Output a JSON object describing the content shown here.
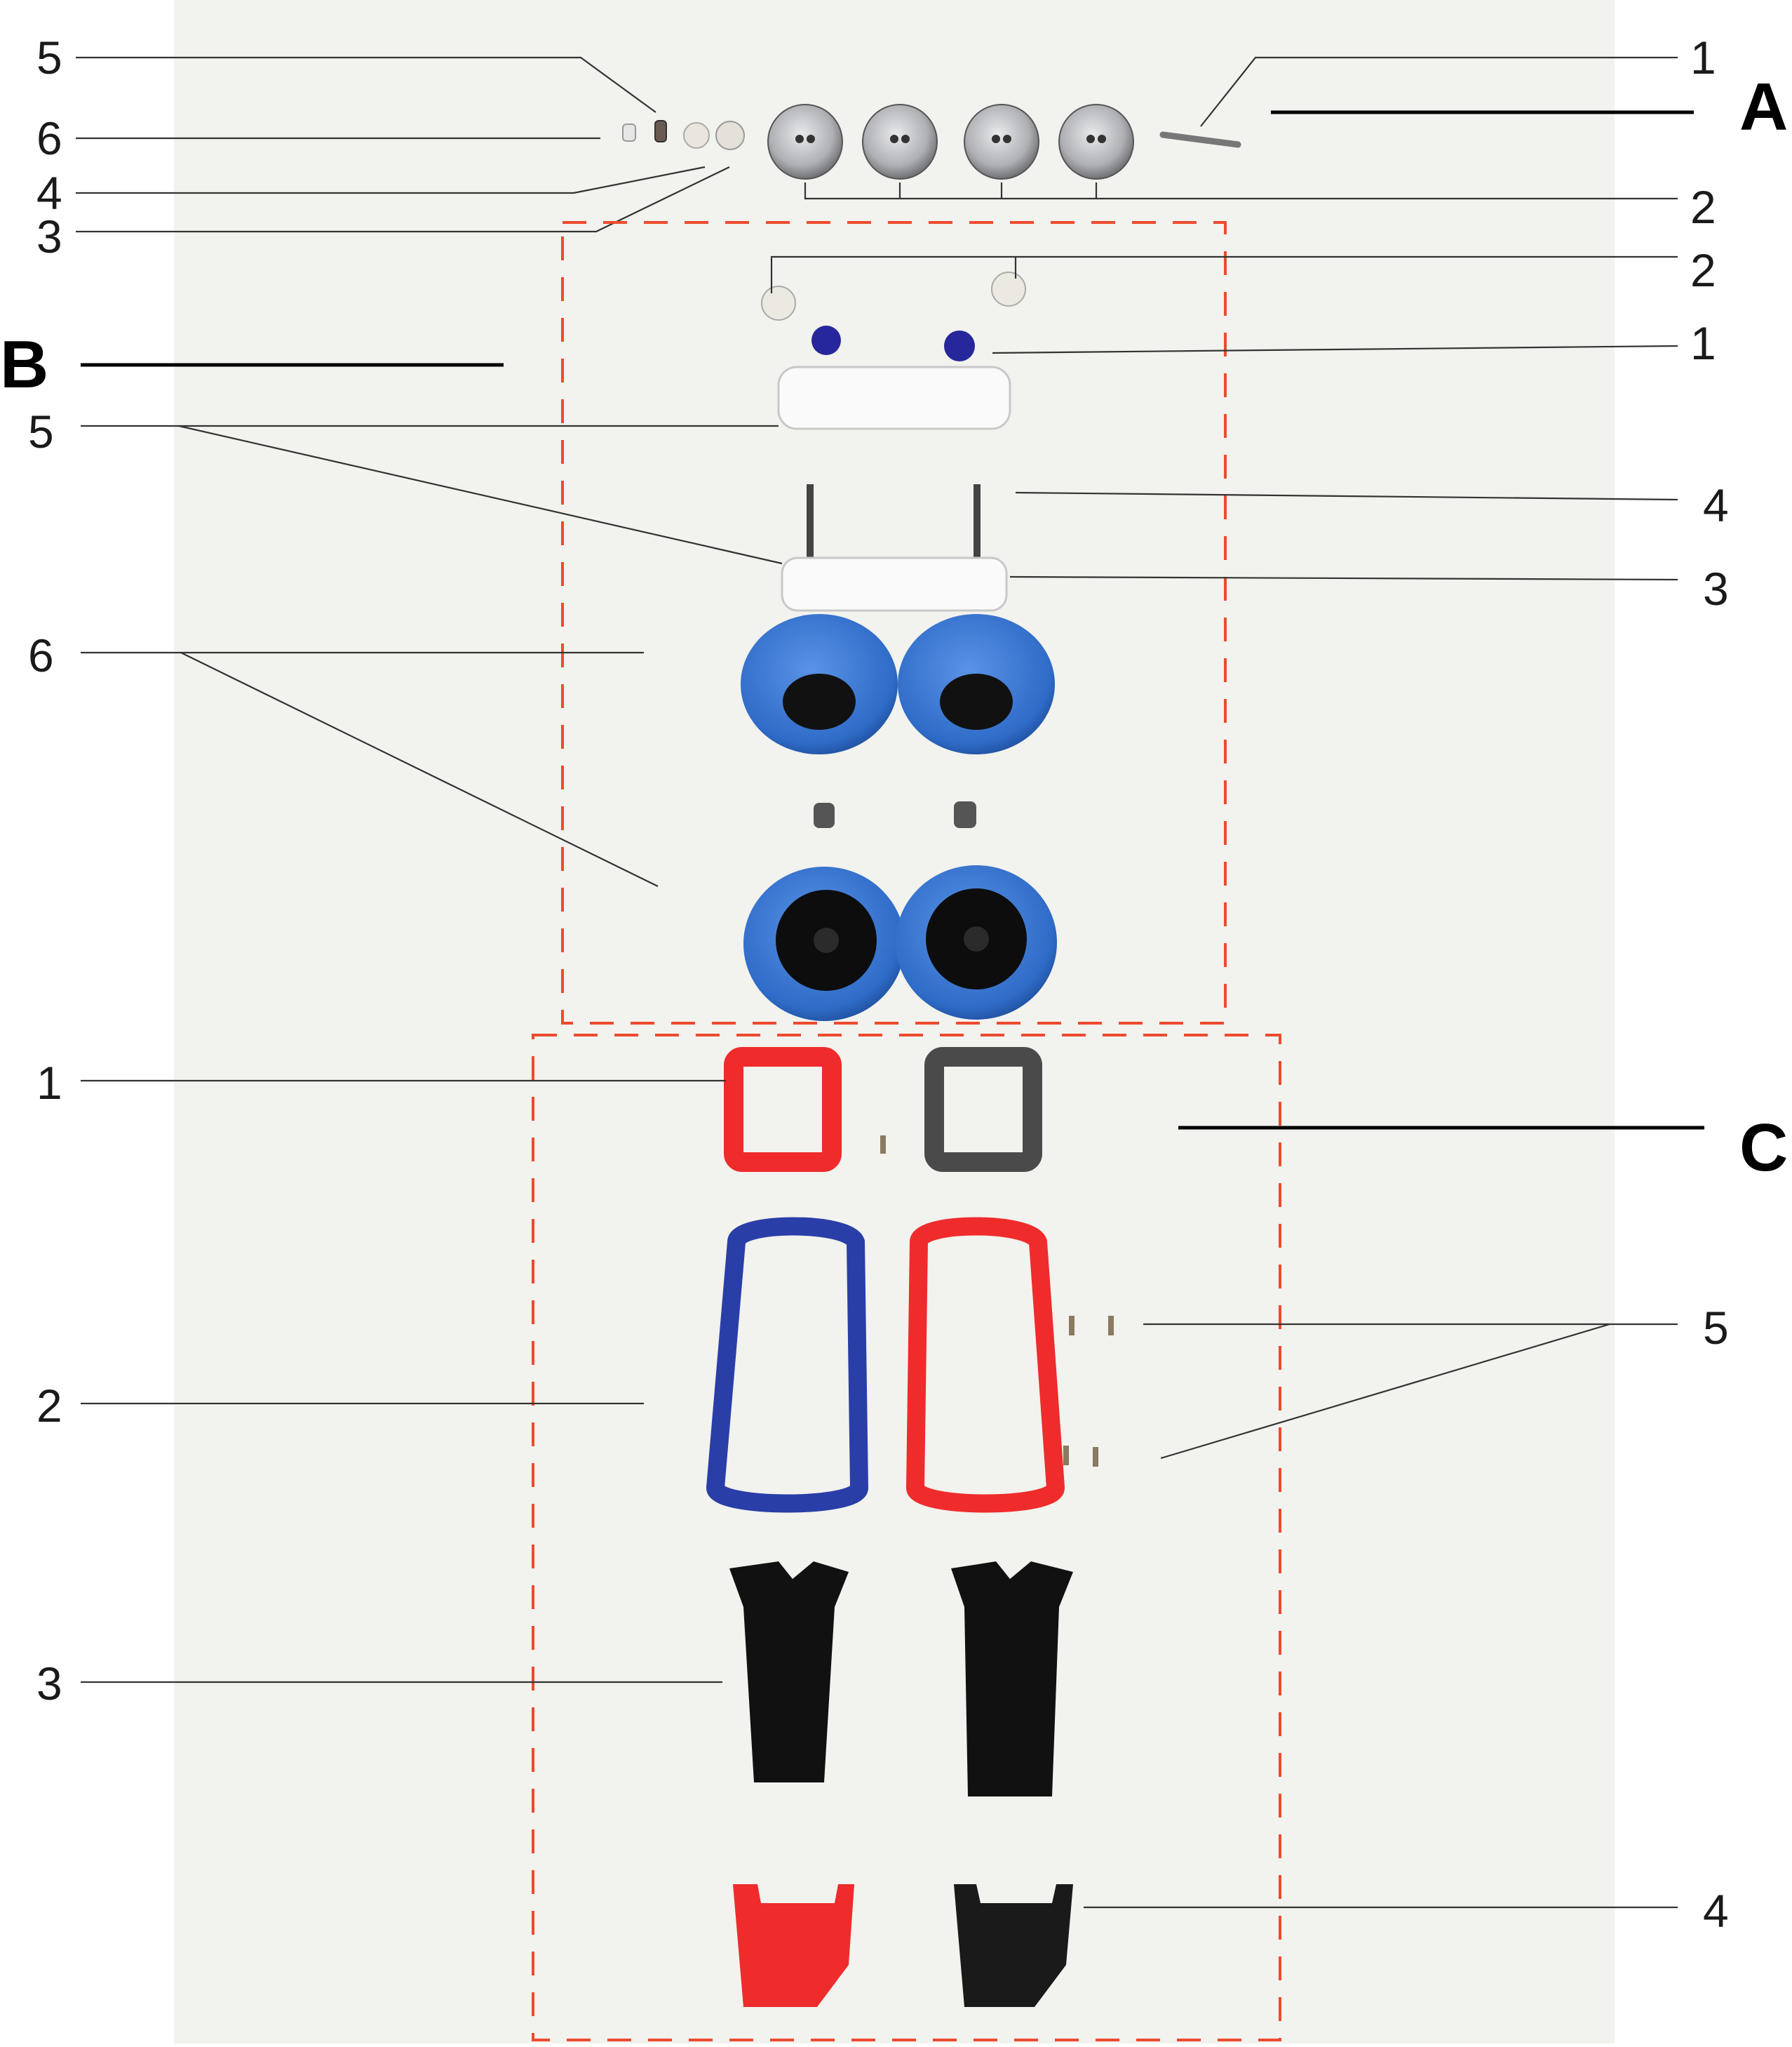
{
  "sections": {
    "A": {
      "label": "A",
      "callouts": [
        "5",
        "6",
        "4",
        "3",
        "1",
        "2"
      ]
    },
    "B": {
      "label": "B",
      "callouts": [
        "2",
        "1",
        "5",
        "4",
        "3",
        "6"
      ]
    },
    "C": {
      "label": "C",
      "callouts": [
        "1",
        "2",
        "3",
        "5",
        "4"
      ]
    }
  },
  "colors": {
    "dash": "#ee4a2f",
    "tire_blue": "#2f6cc8",
    "body_blue": "#2a3ea8",
    "body_red": "#ef2b2b",
    "metal": "#aeb0b4",
    "background_card": "#f2f2ee"
  }
}
